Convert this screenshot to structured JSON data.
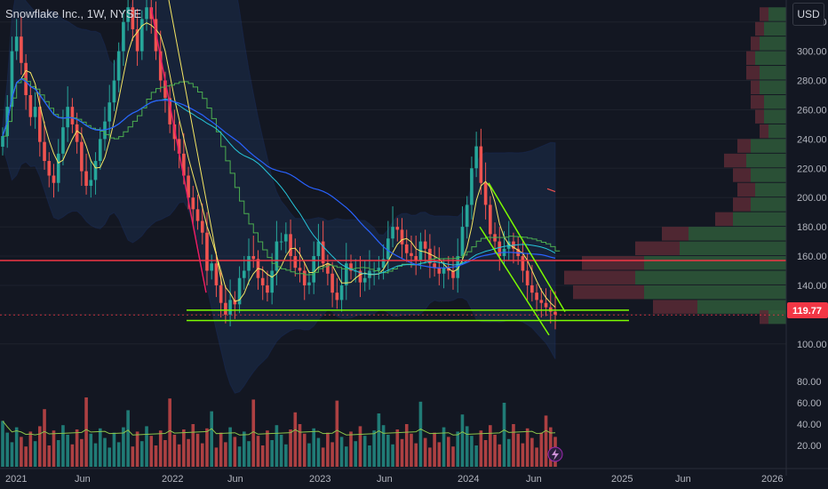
{
  "symbol": "Snowflake Inc., 1W, NYSE",
  "currency": "USD",
  "last_price": "119.77",
  "colors": {
    "background": "#131722",
    "up": "#26a69a",
    "down": "#ef5350",
    "price_tag": "#f23645",
    "horizontal_line": "#f23645",
    "support_line": "#7cfc00",
    "ma_fast": "#f5e663",
    "ma_step": "#4caf50",
    "ma_slow": "#2962ff",
    "ma_mid": "#26c6da",
    "band_fill": "#1f3a66",
    "volume_ma": "#8bc34a"
  },
  "icons": {
    "flash": "lightning-icon"
  },
  "chart_data": {
    "type": "candlestick",
    "title": "Snowflake Inc., 1W, NYSE",
    "price_axis": {
      "ticks": [
        "320.00",
        "300.00",
        "280.00",
        "260.00",
        "240.00",
        "220.00",
        "200.00",
        "180.00",
        "160.00",
        "140.00",
        "120.00",
        "100.00"
      ],
      "range": [
        95,
        335
      ]
    },
    "volume_axis": {
      "ticks": [
        "80.00",
        "60.00",
        "40.00",
        "20.00"
      ],
      "range": [
        0,
        100
      ]
    },
    "time_axis": {
      "ticks": [
        "2021",
        "Jun",
        "2022",
        "Jun",
        "2023",
        "Jun",
        "2024",
        "Jun",
        "2025",
        "Jun",
        "2026"
      ]
    },
    "horizontal_line_price": 157,
    "support_lines": [
      {
        "from": "2022-Jun",
        "to": "2024-Sep",
        "price": 123
      },
      {
        "from": "2022-Jun",
        "to": "2024-Sep",
        "price": 116
      }
    ],
    "weekly_closes": [
      242,
      262,
      300,
      310,
      292,
      270,
      255,
      262,
      238,
      225,
      215,
      210,
      230,
      248,
      262,
      250,
      238,
      218,
      208,
      212,
      225,
      240,
      252,
      265,
      280,
      300,
      320,
      330,
      315,
      300,
      322,
      330,
      322,
      300,
      280,
      268,
      250,
      240,
      230,
      215,
      200,
      192,
      184,
      176,
      150,
      155,
      140,
      128,
      120,
      130,
      127,
      145,
      150,
      160,
      158,
      145,
      140,
      135,
      150,
      170,
      170,
      175,
      160,
      152,
      150,
      140,
      142,
      160,
      170,
      155,
      148,
      135,
      130,
      140,
      155,
      150,
      150,
      142,
      145,
      150,
      150,
      152,
      158,
      172,
      180,
      178,
      168,
      162,
      160,
      157,
      170,
      165,
      155,
      152,
      148,
      152,
      150,
      145,
      160,
      180,
      195,
      220,
      235,
      210,
      195,
      175,
      170,
      160,
      165,
      170,
      165,
      160,
      150,
      140,
      135,
      130,
      128,
      125,
      122,
      120
    ]
  }
}
